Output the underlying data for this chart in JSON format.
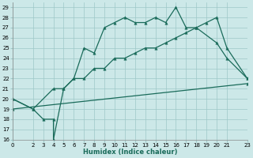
{
  "title": "",
  "xlabel": "Humidex (Indice chaleur)",
  "ylabel": "",
  "bg_color": "#cce8e8",
  "grid_color": "#9ec8c8",
  "line_color": "#1a6b5a",
  "xlim": [
    0,
    23
  ],
  "ylim": [
    16,
    29.5
  ],
  "xticks": [
    0,
    2,
    3,
    4,
    5,
    6,
    7,
    8,
    9,
    10,
    11,
    12,
    13,
    14,
    15,
    16,
    17,
    18,
    19,
    20,
    21,
    23
  ],
  "yticks": [
    16,
    17,
    18,
    19,
    20,
    21,
    22,
    23,
    24,
    25,
    26,
    27,
    28,
    29
  ],
  "line1_x": [
    0,
    2,
    3,
    4,
    4,
    5,
    6,
    7,
    8,
    9,
    10,
    11,
    12,
    13,
    14,
    15,
    16,
    17,
    18,
    20,
    21,
    23
  ],
  "line1_y": [
    20,
    19,
    18,
    18,
    16,
    21,
    22,
    25,
    24.5,
    27,
    27.5,
    28,
    27.5,
    27.5,
    28,
    27.5,
    29,
    27,
    27,
    25.5,
    24,
    22
  ],
  "line2_x": [
    0,
    2,
    4,
    5,
    6,
    7,
    8,
    9,
    10,
    11,
    12,
    13,
    14,
    15,
    16,
    17,
    18,
    19,
    20,
    21,
    23
  ],
  "line2_y": [
    20,
    19,
    21,
    21,
    22,
    22,
    23,
    23,
    24,
    24,
    24.5,
    25,
    25,
    25.5,
    26,
    26.5,
    27,
    27.5,
    28,
    25,
    22
  ],
  "line3_x": [
    0,
    23
  ],
  "line3_y": [
    19,
    21.5
  ]
}
